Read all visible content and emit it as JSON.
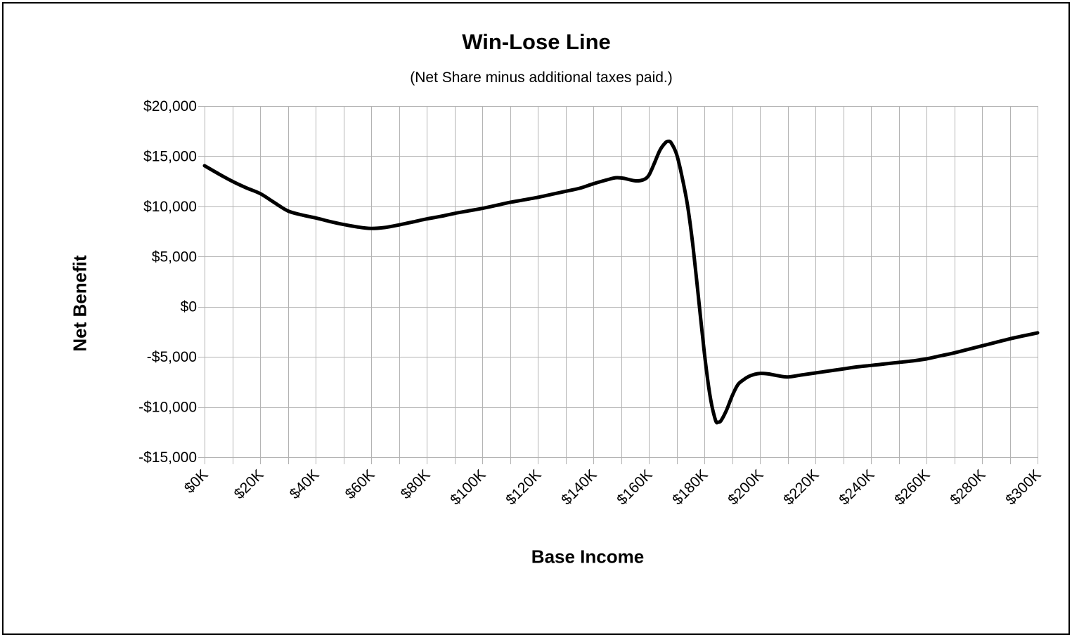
{
  "chart": {
    "title": "Win-Lose Line",
    "subtitle": "(Net Share minus additional taxes paid.)",
    "x_axis_title": "Base Income",
    "y_axis_title": "Net Benefit"
  },
  "chart_data": {
    "type": "line",
    "title": "Win-Lose Line",
    "subtitle": "(Net Share minus additional taxes paid.)",
    "xlabel": "Base Income",
    "ylabel": "Net Benefit",
    "x_unit": "base income in thousands of dollars",
    "y_unit": "dollars",
    "xlim": [
      0,
      300
    ],
    "ylim": [
      -15000,
      20000
    ],
    "x_gridline_step": 10,
    "y_gridline_step": 5000,
    "grid": true,
    "legend": "none",
    "line_color": "#000000",
    "line_width": 5,
    "gridline_color": "#b3b3b3",
    "x_tick_values": [
      0,
      20,
      40,
      60,
      80,
      100,
      120,
      140,
      160,
      180,
      200,
      220,
      240,
      260,
      280,
      300
    ],
    "x_tick_labels": [
      "$0K",
      "$20K",
      "$40K",
      "$60K",
      "$80K",
      "$100K",
      "$120K",
      "$140K",
      "$160K",
      "$180K",
      "$200K",
      "$220K",
      "$240K",
      "$260K",
      "$280K",
      "$300K"
    ],
    "y_tick_values": [
      20000,
      15000,
      10000,
      5000,
      0,
      -5000,
      -10000,
      -15000
    ],
    "y_tick_labels": [
      "$20,000",
      "$15,000",
      "$10,000",
      "$5,000",
      "$0",
      "-$5,000",
      "-$10,000",
      "-$15,000"
    ],
    "series": [
      {
        "name": "Net Benefit",
        "points": [
          [
            0,
            14050
          ],
          [
            5,
            13250
          ],
          [
            10,
            12500
          ],
          [
            15,
            11850
          ],
          [
            20,
            11280
          ],
          [
            25,
            10400
          ],
          [
            30,
            9550
          ],
          [
            35,
            9150
          ],
          [
            40,
            8850
          ],
          [
            45,
            8500
          ],
          [
            50,
            8200
          ],
          [
            55,
            7950
          ],
          [
            60,
            7800
          ],
          [
            65,
            7900
          ],
          [
            70,
            8150
          ],
          [
            75,
            8450
          ],
          [
            80,
            8750
          ],
          [
            85,
            9000
          ],
          [
            90,
            9300
          ],
          [
            95,
            9550
          ],
          [
            100,
            9800
          ],
          [
            105,
            10100
          ],
          [
            110,
            10400
          ],
          [
            115,
            10650
          ],
          [
            120,
            10900
          ],
          [
            125,
            11200
          ],
          [
            130,
            11500
          ],
          [
            135,
            11800
          ],
          [
            140,
            12250
          ],
          [
            145,
            12650
          ],
          [
            148,
            12850
          ],
          [
            151,
            12800
          ],
          [
            155,
            12550
          ],
          [
            158,
            12650
          ],
          [
            160,
            13100
          ],
          [
            162,
            14300
          ],
          [
            164,
            15600
          ],
          [
            166,
            16350
          ],
          [
            167,
            16480
          ],
          [
            168,
            16350
          ],
          [
            170,
            15200
          ],
          [
            172,
            12900
          ],
          [
            174,
            10000
          ],
          [
            176,
            5800
          ],
          [
            178,
            600
          ],
          [
            180,
            -4600
          ],
          [
            182,
            -8800
          ],
          [
            184,
            -11300
          ],
          [
            185,
            -11500
          ],
          [
            186,
            -11350
          ],
          [
            188,
            -10300
          ],
          [
            190,
            -8900
          ],
          [
            192,
            -7800
          ],
          [
            194,
            -7300
          ],
          [
            196,
            -6950
          ],
          [
            198,
            -6750
          ],
          [
            200,
            -6650
          ],
          [
            203,
            -6700
          ],
          [
            206,
            -6850
          ],
          [
            210,
            -7000
          ],
          [
            215,
            -6800
          ],
          [
            220,
            -6600
          ],
          [
            225,
            -6400
          ],
          [
            230,
            -6200
          ],
          [
            235,
            -6000
          ],
          [
            240,
            -5850
          ],
          [
            245,
            -5700
          ],
          [
            250,
            -5550
          ],
          [
            255,
            -5400
          ],
          [
            260,
            -5200
          ],
          [
            265,
            -4900
          ],
          [
            270,
            -4600
          ],
          [
            275,
            -4250
          ],
          [
            280,
            -3900
          ],
          [
            285,
            -3550
          ],
          [
            290,
            -3200
          ],
          [
            295,
            -2900
          ],
          [
            300,
            -2600
          ]
        ]
      }
    ]
  }
}
